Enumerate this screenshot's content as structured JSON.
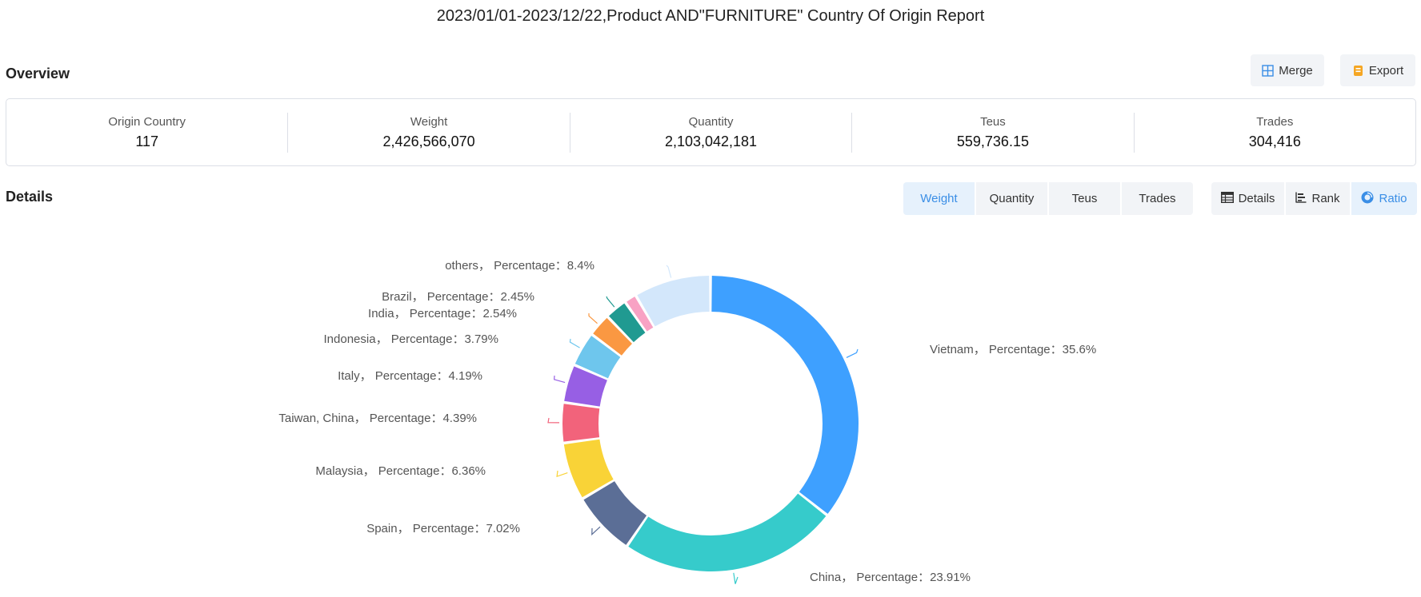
{
  "report": {
    "title": "2023/01/01-2023/12/22,Product AND\"FURNITURE\" Country Of Origin Report"
  },
  "overview": {
    "title": "Overview",
    "merge_label": "Merge",
    "export_label": "Export",
    "stats": [
      {
        "label": "Origin Country",
        "value": "117"
      },
      {
        "label": "Weight",
        "value": "2,426,566,070"
      },
      {
        "label": "Quantity",
        "value": "2,103,042,181"
      },
      {
        "label": "Teus",
        "value": "559,736.15"
      },
      {
        "label": "Trades",
        "value": "304,416"
      }
    ]
  },
  "details": {
    "title": "Details",
    "metric_tabs": [
      {
        "label": "Weight",
        "active": true
      },
      {
        "label": "Quantity",
        "active": false
      },
      {
        "label": "Teus",
        "active": false
      },
      {
        "label": "Trades",
        "active": false
      }
    ],
    "view_tabs": [
      {
        "label": "Details",
        "icon": "table-icon",
        "active": false
      },
      {
        "label": "Rank",
        "icon": "bar-rank-icon",
        "active": false
      },
      {
        "label": "Ratio",
        "icon": "donut-icon",
        "active": true
      }
    ]
  },
  "chart_data": {
    "type": "pie",
    "donut": true,
    "label_template": "{name}，  Percentage：{value}%",
    "slices": [
      {
        "name": "Vietnam",
        "value": 35.6,
        "color": "#3ea0ff"
      },
      {
        "name": "China",
        "value": 23.91,
        "color": "#36cbcb"
      },
      {
        "name": "Spain",
        "value": 7.02,
        "color": "#5b6e96"
      },
      {
        "name": "Malaysia",
        "value": 6.36,
        "color": "#f9d337"
      },
      {
        "name": "Taiwan, China",
        "value": 4.39,
        "color": "#f2637b"
      },
      {
        "name": "Italy",
        "value": 4.19,
        "color": "#975fe4"
      },
      {
        "name": "Indonesia",
        "value": 3.79,
        "color": "#6ec6ed"
      },
      {
        "name": "India",
        "value": 2.54,
        "color": "#fa9842"
      },
      {
        "name": "Brazil",
        "value": 2.45,
        "color": "#209a91"
      },
      {
        "name": "",
        "value": 1.34,
        "color": "#f8a2c4"
      },
      {
        "name": "others",
        "value": 8.4,
        "color": "#d3e7fb"
      }
    ]
  }
}
